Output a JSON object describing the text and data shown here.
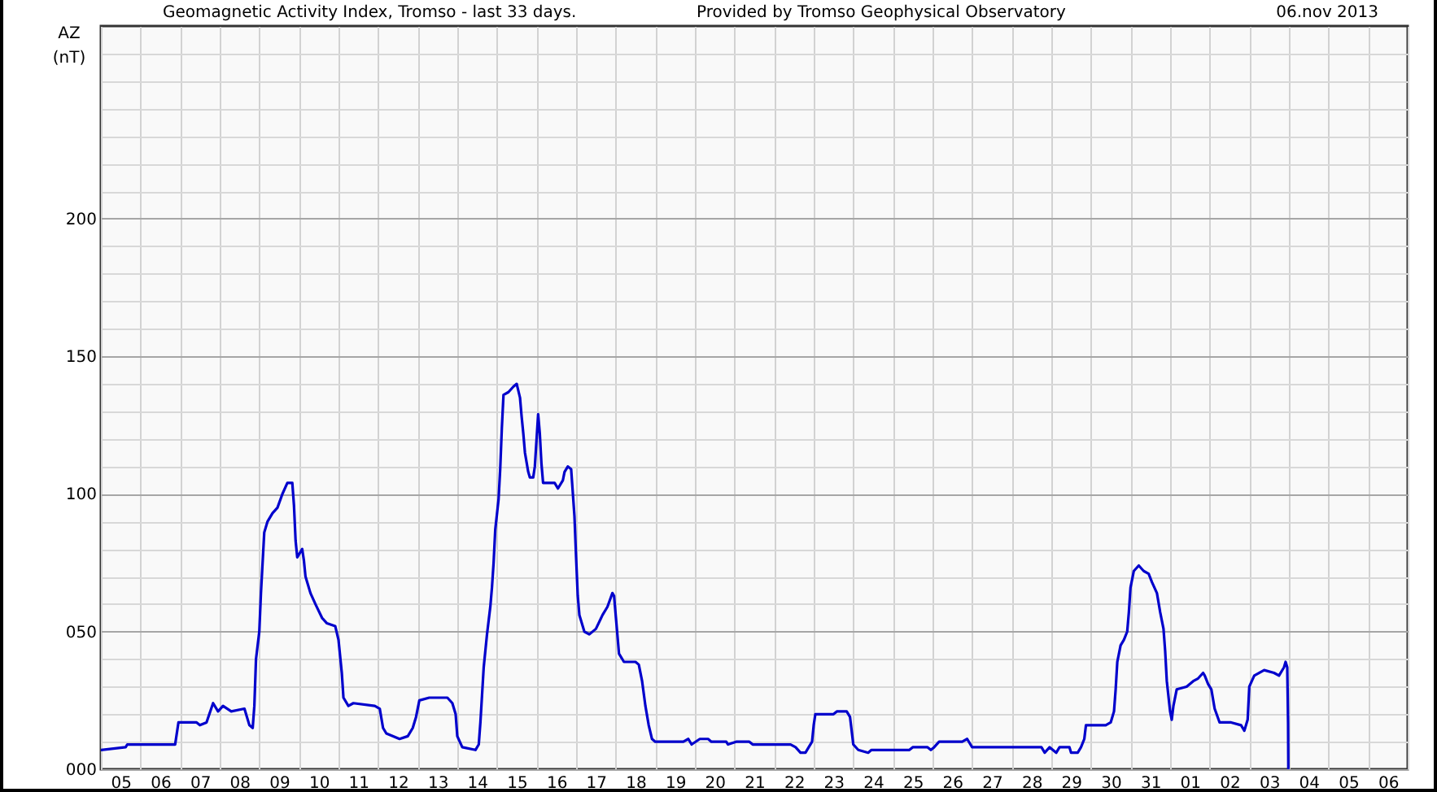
{
  "chart_data": {
    "type": "line",
    "title": "Geomagnetic Activity Index, Tromso - last 33 days.",
    "ylabel": "AZ (nT)",
    "annotations": [
      "Provided by Tromso Geophysical Observatory",
      "06.nov 2013"
    ],
    "color": "#0000cc",
    "grid": true,
    "xlim": [
      "2013-10-05T00:00",
      "2013-11-07T00:00"
    ],
    "ylim": [
      0,
      270
    ],
    "yticks": [
      {
        "value": 0,
        "label": "000"
      },
      {
        "value": 10,
        "label": null
      },
      {
        "value": 20,
        "label": null
      },
      {
        "value": 30,
        "label": null
      },
      {
        "value": 40,
        "label": null
      },
      {
        "value": 50,
        "label": "050"
      },
      {
        "value": 60,
        "label": null
      },
      {
        "value": 70,
        "label": null
      },
      {
        "value": 80,
        "label": null
      },
      {
        "value": 90,
        "label": null
      },
      100,
      {
        "value": 110,
        "label": null
      },
      {
        "value": 120,
        "label": null
      },
      {
        "value": 130,
        "label": null
      },
      {
        "value": 140,
        "label": null
      },
      150,
      {
        "value": 160,
        "label": null
      },
      {
        "value": 170,
        "label": null
      },
      {
        "value": 180,
        "label": null
      },
      {
        "value": 190,
        "label": null
      },
      200,
      {
        "value": 210,
        "label": null
      },
      {
        "value": 220,
        "label": null
      },
      {
        "value": 230,
        "label": null
      },
      {
        "value": 240,
        "label": null
      },
      {
        "value": 250,
        "label": null
      },
      {
        "value": 260,
        "label": null
      }
    ],
    "xticks": [
      {
        "value": "2013-10-05T00:00",
        "label": null
      },
      {
        "value": "2013-10-05T12:00",
        "label": "05"
      },
      {
        "value": "2013-10-06T00:00",
        "label": null
      },
      {
        "value": "2013-10-06T12:00",
        "label": "06"
      },
      {
        "value": "2013-10-07T00:00",
        "label": null
      },
      {
        "value": "2013-10-07T12:00",
        "label": "07"
      },
      {
        "value": "2013-10-08T00:00",
        "label": null
      },
      {
        "value": "2013-10-08T12:00",
        "label": "08"
      },
      {
        "value": "2013-10-09T00:00",
        "label": null
      },
      {
        "value": "2013-10-09T12:00",
        "label": "09"
      },
      {
        "value": "2013-10-10T00:00",
        "label": null
      },
      {
        "value": "2013-10-10T12:00",
        "label": "10"
      },
      {
        "value": "2013-10-11T00:00",
        "label": null
      },
      {
        "value": "2013-10-11T12:00",
        "label": "11"
      },
      {
        "value": "2013-10-12T00:00",
        "label": null
      },
      {
        "value": "2013-10-12T12:00",
        "label": "12"
      },
      {
        "value": "2013-10-13T00:00",
        "label": null
      },
      {
        "value": "2013-10-13T12:00",
        "label": "13"
      },
      {
        "value": "2013-10-14T00:00",
        "label": null
      },
      {
        "value": "2013-10-14T12:00",
        "label": "14"
      },
      {
        "value": "2013-10-15T00:00",
        "label": null
      },
      {
        "value": "2013-10-15T12:00",
        "label": "15"
      },
      {
        "value": "2013-10-16T00:00",
        "label": null
      },
      {
        "value": "2013-10-16T12:00",
        "label": "16"
      },
      {
        "value": "2013-10-17T00:00",
        "label": null
      },
      {
        "value": "2013-10-17T12:00",
        "label": "17"
      },
      {
        "value": "2013-10-18T00:00",
        "label": null
      },
      {
        "value": "2013-10-18T12:00",
        "label": "18"
      },
      {
        "value": "2013-10-19T00:00",
        "label": null
      },
      {
        "value": "2013-10-19T12:00",
        "label": "19"
      },
      {
        "value": "2013-10-20T00:00",
        "label": null
      },
      {
        "value": "2013-10-20T12:00",
        "label": "20"
      },
      {
        "value": "2013-10-21T00:00",
        "label": null
      },
      {
        "value": "2013-10-21T12:00",
        "label": "21"
      },
      {
        "value": "2013-10-22T00:00",
        "label": null
      },
      {
        "value": "2013-10-22T12:00",
        "label": "22"
      },
      {
        "value": "2013-10-23T00:00",
        "label": null
      },
      {
        "value": "2013-10-23T12:00",
        "label": "23"
      },
      {
        "value": "2013-10-24T00:00",
        "label": null
      },
      {
        "value": "2013-10-24T12:00",
        "label": "24"
      },
      {
        "value": "2013-10-25T00:00",
        "label": null
      },
      {
        "value": "2013-10-25T12:00",
        "label": "25"
      },
      {
        "value": "2013-10-26T00:00",
        "label": null
      },
      {
        "value": "2013-10-26T12:00",
        "label": "26"
      },
      {
        "value": "2013-10-27T00:00",
        "label": null
      },
      {
        "value": "2013-10-27T12:00",
        "label": "27"
      },
      {
        "value": "2013-10-28T00:00",
        "label": null
      },
      {
        "value": "2013-10-28T12:00",
        "label": "28"
      },
      {
        "value": "2013-10-29T00:00",
        "label": null
      },
      {
        "value": "2013-10-29T12:00",
        "label": "29"
      },
      {
        "value": "2013-10-30T00:00",
        "label": null
      },
      {
        "value": "2013-10-30T12:00",
        "label": "30"
      },
      {
        "value": "2013-10-31T00:00",
        "label": null
      },
      {
        "value": "2013-10-31T12:00",
        "label": "31"
      },
      {
        "value": "2013-11-01T00:00",
        "label": null
      },
      {
        "value": "2013-11-01T12:00",
        "label": "01"
      },
      {
        "value": "2013-11-02T00:00",
        "label": null
      },
      {
        "value": "2013-11-02T12:00",
        "label": "02"
      },
      {
        "value": "2013-11-03T00:00",
        "label": null
      },
      {
        "value": "2013-11-03T12:00",
        "label": "03"
      },
      {
        "value": "2013-11-04T00:00",
        "label": null
      },
      {
        "value": "2013-11-04T12:00",
        "label": "04"
      },
      {
        "value": "2013-11-05T00:00",
        "label": null
      },
      {
        "value": "2013-11-05T12:00",
        "label": "05"
      },
      {
        "value": "2013-11-06T00:00",
        "label": null
      },
      {
        "value": "2013-11-06T12:00",
        "label": "06"
      },
      {
        "value": "2013-11-07T00:00",
        "label": null
      }
    ],
    "x": [
      "2013-10-05T00:00",
      "2013-10-05T15:00",
      "2013-10-05T16:00",
      "2013-10-06T21:00",
      "2013-10-06T23:00",
      "2013-10-07T10:00",
      "2013-10-07T12:00",
      "2013-10-07T16:00",
      "2013-10-07T20:00",
      "2013-10-07T23:00",
      "2013-10-08T02:00",
      "2013-10-08T07:00",
      "2013-10-08T15:00",
      "2013-10-08T18:00",
      "2013-10-08T20:00",
      "2013-10-08T21:00",
      "2013-10-08T22:00",
      "2013-10-09T00:00",
      "2013-10-09T01:00",
      "2013-10-09T03:00",
      "2013-10-09T05:00",
      "2013-10-09T08:00",
      "2013-10-09T11:00",
      "2013-10-09T14:00",
      "2013-10-09T17:00",
      "2013-10-09T20:00",
      "2013-10-09T21:00",
      "2013-10-09T22:00",
      "2013-10-09T23:00",
      "2013-10-10T02:00",
      "2013-10-10T03:00",
      "2013-10-10T04:00",
      "2013-10-10T07:00",
      "2013-10-10T10:00",
      "2013-10-10T14:00",
      "2013-10-10T17:00",
      "2013-10-10T22:00",
      "2013-10-11T00:00",
      "2013-10-11T02:00",
      "2013-10-11T03:00",
      "2013-10-11T06:00",
      "2013-10-11T09:00",
      "2013-10-11T22:00",
      "2013-10-12T01:00",
      "2013-10-12T03:00",
      "2013-10-12T05:00",
      "2013-10-12T13:00",
      "2013-10-12T18:00",
      "2013-10-12T21:00",
      "2013-10-12T23:00",
      "2013-10-13T01:00",
      "2013-10-13T07:00",
      "2013-10-13T18:00",
      "2013-10-13T21:00",
      "2013-10-13T23:00",
      "2013-10-14T00:00",
      "2013-10-14T03:00",
      "2013-10-14T11:00",
      "2013-10-14T13:00",
      "2013-10-14T14:00",
      "2013-10-14T15:00",
      "2013-10-14T16:00",
      "2013-10-14T18:00",
      "2013-10-14T20:00",
      "2013-10-14T21:00",
      "2013-10-14T22:00",
      "2013-10-14T23:00",
      "2013-10-15T01:00",
      "2013-10-15T02:00",
      "2013-10-15T03:00",
      "2013-10-15T04:00",
      "2013-10-15T07:00",
      "2013-10-15T10:00",
      "2013-10-15T12:00",
      "2013-10-15T14:00",
      "2013-10-15T15:00",
      "2013-10-15T16:00",
      "2013-10-15T17:00",
      "2013-10-15T19:00",
      "2013-10-15T20:00",
      "2013-10-15T22:00",
      "2013-10-15T23:00",
      "2013-10-16T01:00",
      "2013-10-16T02:00",
      "2013-10-16T03:00",
      "2013-10-16T04:00",
      "2013-10-16T11:00",
      "2013-10-16T13:00",
      "2013-10-16T16:00",
      "2013-10-16T17:00",
      "2013-10-16T19:00",
      "2013-10-16T21:00",
      "2013-10-16T23:00",
      "2013-10-17T00:00",
      "2013-10-17T01:00",
      "2013-10-17T02:00",
      "2013-10-17T05:00",
      "2013-10-17T08:00",
      "2013-10-17T12:00",
      "2013-10-17T16:00",
      "2013-10-17T19:00",
      "2013-10-17T22:00",
      "2013-10-17T23:00",
      "2013-10-18T01:00",
      "2013-10-18T02:00",
      "2013-10-18T05:00",
      "2013-10-18T12:00",
      "2013-10-18T14:00",
      "2013-10-18T16:00",
      "2013-10-18T18:00",
      "2013-10-18T20:00",
      "2013-10-18T22:00",
      "2013-10-19T00:00",
      "2013-10-19T17:00",
      "2013-10-19T20:00",
      "2013-10-19T22:00",
      "2013-10-20T03:00",
      "2013-10-20T08:00",
      "2013-10-20T10:00",
      "2013-10-20T19:00",
      "2013-10-20T20:00",
      "2013-10-21T01:00",
      "2013-10-21T09:00",
      "2013-10-21T11:00",
      "2013-10-22T10:00",
      "2013-10-22T13:00",
      "2013-10-22T16:00",
      "2013-10-22T19:00",
      "2013-10-22T23:00",
      "2013-10-23T00:00",
      "2013-10-23T01:00",
      "2013-10-23T12:00",
      "2013-10-23T14:00",
      "2013-10-23T20:00",
      "2013-10-23T22:00",
      "2013-10-24T00:00",
      "2013-10-24T03:00",
      "2013-10-24T09:00",
      "2013-10-24T11:00",
      "2013-10-25T10:00",
      "2013-10-25T12:00",
      "2013-10-25T21:00",
      "2013-10-25T23:00",
      "2013-10-26T01:00",
      "2013-10-26T04:00",
      "2013-10-26T18:00",
      "2013-10-26T21:00",
      "2013-10-27T00:00",
      "2013-10-28T18:00",
      "2013-10-28T20:00",
      "2013-10-28T23:00",
      "2013-10-29T03:00",
      "2013-10-29T05:00",
      "2013-10-29T11:00",
      "2013-10-29T12:00",
      "2013-10-29T16:00",
      "2013-10-29T18:00",
      "2013-10-29T20:00",
      "2013-10-29T21:00",
      "2013-10-30T09:00",
      "2013-10-30T12:00",
      "2013-10-30T14:00",
      "2013-10-30T15:00",
      "2013-10-30T16:00",
      "2013-10-30T18:00",
      "2013-10-30T20:00",
      "2013-10-30T22:00",
      "2013-10-30T23:00",
      "2013-10-31T00:00",
      "2013-10-31T02:00",
      "2013-10-31T05:00",
      "2013-10-31T08:00",
      "2013-10-31T11:00",
      "2013-10-31T13:00",
      "2013-10-31T16:00",
      "2013-10-31T18:00",
      "2013-10-31T20:00",
      "2013-10-31T21:00",
      "2013-10-31T22:00",
      "2013-11-01T00:00",
      "2013-11-01T01:00",
      "2013-11-01T02:00",
      "2013-11-01T04:00",
      "2013-11-01T10:00",
      "2013-11-01T14:00",
      "2013-11-01T17:00",
      "2013-11-01T20:00",
      "2013-11-01T21:00",
      "2013-11-01T23:00",
      "2013-11-02T01:00",
      "2013-11-02T03:00",
      "2013-11-02T06:00",
      "2013-11-02T13:00",
      "2013-11-02T19:00",
      "2013-11-02T21:00",
      "2013-11-02T23:00",
      "2013-11-03T00:00",
      "2013-11-03T03:00",
      "2013-11-03T09:00",
      "2013-11-03T15:00",
      "2013-11-03T18:00",
      "2013-11-03T21:00",
      "2013-11-03T22:00",
      "2013-11-03T23:00",
      "2013-11-03T23:30",
      "2013-11-03T23:40"
    ],
    "values": [
      7,
      8,
      9,
      9,
      17,
      17,
      16,
      17,
      24,
      21,
      23,
      21,
      22,
      16,
      15,
      23,
      40,
      50,
      64,
      86,
      90,
      93,
      95,
      100,
      104,
      104,
      96,
      83,
      77,
      80,
      76,
      70,
      64,
      60,
      55,
      53,
      52,
      47,
      35,
      26,
      23,
      24,
      23,
      22,
      15,
      13,
      11,
      12,
      15,
      19,
      25,
      26,
      26,
      24,
      20,
      12,
      8,
      7,
      9,
      17,
      27,
      37,
      49,
      59,
      66,
      75,
      87,
      98,
      109,
      124,
      136,
      137,
      139,
      140,
      135,
      128,
      122,
      115,
      108,
      106,
      106,
      110,
      129,
      122,
      111,
      104,
      104,
      102,
      105,
      108,
      110,
      109,
      92,
      77,
      63,
      56,
      50,
      49,
      51,
      56,
      59,
      64,
      63,
      49,
      42,
      39,
      39,
      38,
      32,
      23,
      16,
      11,
      10,
      10,
      11,
      9,
      11,
      11,
      10,
      10,
      9,
      10,
      10,
      9,
      9,
      8,
      6,
      6,
      10,
      16,
      20,
      20,
      21,
      21,
      19,
      9,
      7,
      6,
      7,
      7,
      8,
      8,
      7,
      8,
      10,
      10,
      11,
      8,
      8,
      6,
      8,
      6,
      8,
      8,
      6,
      6,
      8,
      11,
      16,
      16,
      17,
      21,
      29,
      39,
      45,
      47,
      50,
      57,
      66,
      72,
      74,
      72,
      71,
      68,
      64,
      57,
      51,
      43,
      32,
      21,
      18,
      23,
      29,
      30,
      32,
      33,
      35,
      34,
      31,
      29,
      22,
      17,
      17,
      16,
      14,
      18,
      30,
      34,
      36,
      35,
      34,
      37,
      39,
      37,
      17,
      0
    ]
  }
}
